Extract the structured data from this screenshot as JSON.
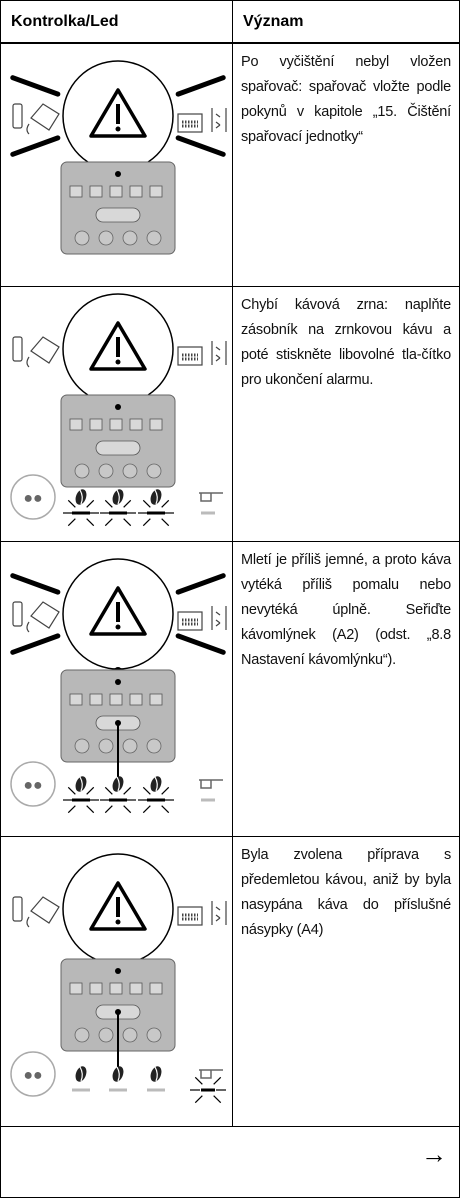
{
  "table": {
    "headers": [
      "Kontrolka/Led",
      "Význam"
    ],
    "rows": [
      {
        "description": "Po vyčištění nebyl vložen spařovač: spařovač vložte podle pokynů v kapitole „15. Čištění spařovací jednotky“"
      },
      {
        "description": "Chybí kávová zrna: naplňte zásobník na zrnkovou kávu a poté stiskněte libovolné tla-čítko pro ukončení alarmu."
      },
      {
        "description": "Mletí je příliš jemné, a proto káva vytéká příliš pomalu nebo nevytéká úplně. Seřiďte kávomlýnek (A2) (odst. „8.8 Nastavení kávomlýnku“)."
      },
      {
        "description": "Byla zvolena příprava s předemletou kávou, aniž by byla nasypána káva do příslušné násypky (A4)"
      }
    ],
    "footer": "→"
  }
}
